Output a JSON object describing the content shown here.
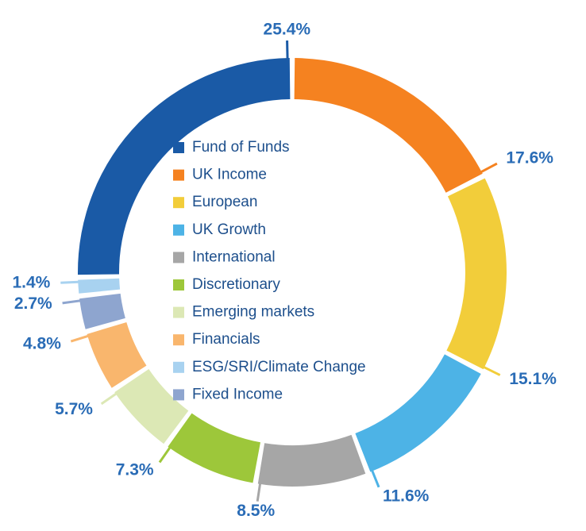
{
  "chart_data": {
    "type": "pie",
    "donut": true,
    "categories": [
      "Fund of Funds",
      "UK Income",
      "European",
      "UK Growth",
      "International",
      "Discretionary",
      "Emerging markets",
      "Financials",
      "ESG/SRI/Climate Change",
      "Fixed Income"
    ],
    "values": [
      25.4,
      17.6,
      15.1,
      11.6,
      8.5,
      7.3,
      5.7,
      4.8,
      1.4,
      2.7
    ],
    "value_labels": [
      "25.4%",
      "17.6%",
      "15.1%",
      "11.6%",
      "8.5%",
      "7.3%",
      "5.7%",
      "4.8%",
      "1.4%",
      "2.7%"
    ],
    "colors": [
      "#1a5aa6",
      "#f58220",
      "#f2cd3a",
      "#4db3e6",
      "#a6a6a6",
      "#9dc73a",
      "#dce8b5",
      "#f9b66d",
      "#a8d2f0",
      "#8ea5cf"
    ],
    "legend": "center"
  }
}
